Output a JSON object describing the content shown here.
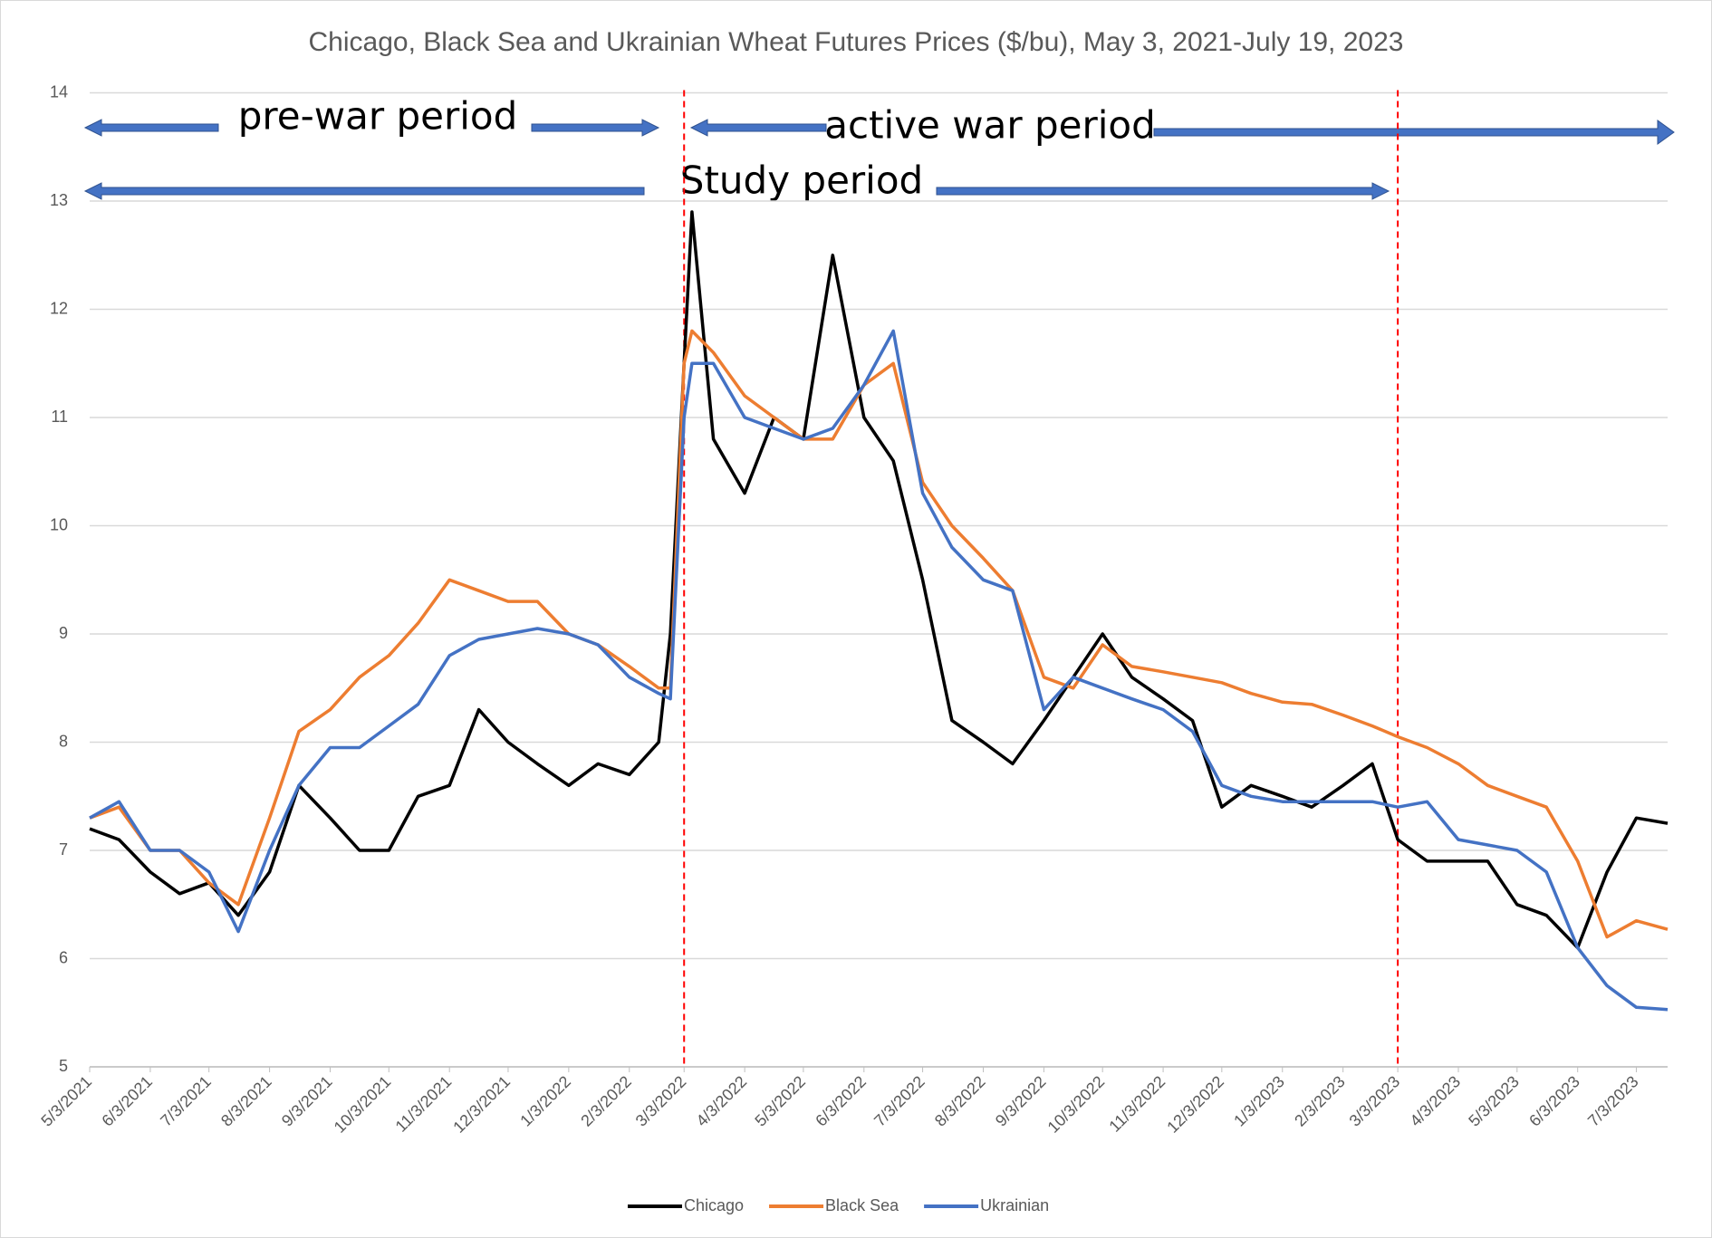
{
  "chart_data": {
    "type": "line",
    "title": "Chicago, Black Sea and Ukrainian Wheat Futures Prices ($/bu), May 3, 2021-July 19, 2023",
    "x": [
      "5/3/2021",
      "5/18/2021",
      "6/3/2021",
      "6/18/2021",
      "7/3/2021",
      "7/18/2021",
      "8/3/2021",
      "8/18/2021",
      "9/3/2021",
      "9/18/2021",
      "10/3/2021",
      "10/18/2021",
      "11/3/2021",
      "11/18/2021",
      "12/3/2021",
      "12/18/2021",
      "1/3/2022",
      "1/18/2022",
      "2/3/2022",
      "2/18/2022",
      "2/24/2022",
      "3/3/2022",
      "3/7/2022",
      "3/18/2022",
      "4/3/2022",
      "4/18/2022",
      "5/3/2022",
      "5/18/2022",
      "6/3/2022",
      "6/18/2022",
      "7/3/2022",
      "7/18/2022",
      "8/3/2022",
      "8/18/2022",
      "9/3/2022",
      "9/18/2022",
      "10/3/2022",
      "10/18/2022",
      "11/3/2022",
      "11/18/2022",
      "12/3/2022",
      "12/18/2022",
      "1/3/2023",
      "1/18/2023",
      "2/3/2023",
      "2/18/2023",
      "3/3/2023",
      "3/18/2023",
      "4/3/2023",
      "4/18/2023",
      "5/3/2023",
      "5/18/2023",
      "6/3/2023",
      "6/18/2023",
      "7/3/2023",
      "7/19/2023"
    ],
    "series": [
      {
        "name": "Chicago",
        "color": "#000000",
        "values": [
          7.2,
          7.1,
          6.8,
          6.6,
          6.7,
          6.4,
          6.8,
          7.6,
          7.3,
          7.0,
          7.0,
          7.5,
          7.6,
          8.3,
          8.0,
          7.8,
          7.6,
          7.8,
          7.7,
          8.0,
          9.0,
          11.5,
          12.9,
          10.8,
          10.3,
          11.0,
          10.8,
          12.5,
          11.0,
          10.6,
          9.5,
          8.2,
          8.0,
          7.8,
          8.2,
          8.6,
          9.0,
          8.6,
          8.4,
          8.2,
          7.4,
          7.6,
          7.5,
          7.4,
          7.6,
          7.8,
          7.1,
          6.9,
          6.9,
          6.9,
          6.5,
          6.4,
          6.1,
          6.8,
          7.3,
          7.25
        ]
      },
      {
        "name": "Black Sea",
        "color": "#ed7d31",
        "values": [
          7.3,
          7.4,
          7.0,
          7.0,
          6.7,
          6.5,
          7.3,
          8.1,
          8.3,
          8.6,
          8.8,
          9.1,
          9.5,
          9.4,
          9.3,
          9.3,
          9.0,
          8.9,
          8.7,
          8.5,
          8.5,
          11.5,
          11.8,
          11.6,
          11.2,
          11.0,
          10.8,
          10.8,
          11.3,
          11.5,
          10.4,
          10.0,
          9.7,
          9.4,
          8.6,
          8.5,
          8.9,
          8.7,
          8.65,
          8.6,
          8.55,
          8.45,
          8.37,
          8.35,
          8.25,
          8.15,
          8.05,
          7.95,
          7.8,
          7.6,
          7.5,
          7.4,
          6.9,
          6.2,
          6.35,
          6.27
        ]
      },
      {
        "name": "Ukrainian",
        "color": "#4472c4",
        "values": [
          7.3,
          7.45,
          7.0,
          7.0,
          6.8,
          6.25,
          7.0,
          7.6,
          7.95,
          7.95,
          8.15,
          8.35,
          8.8,
          8.95,
          9.0,
          9.05,
          9.0,
          8.9,
          8.6,
          8.45,
          8.4,
          11.0,
          11.5,
          11.5,
          11.0,
          10.9,
          10.8,
          10.9,
          11.3,
          11.8,
          10.3,
          9.8,
          9.5,
          9.4,
          8.3,
          8.6,
          8.5,
          8.4,
          8.3,
          8.1,
          7.6,
          7.5,
          7.45,
          7.45,
          7.45,
          7.45,
          7.4,
          7.45,
          7.1,
          7.05,
          7.0,
          6.8,
          6.1,
          5.75,
          5.55,
          5.53
        ]
      }
    ],
    "xlim": [
      "5/3/2021",
      "7/19/2023"
    ],
    "xticks": [
      "5/3/2021",
      "6/3/2021",
      "7/3/2021",
      "8/3/2021",
      "9/3/2021",
      "10/3/2021",
      "11/3/2021",
      "12/3/2021",
      "1/3/2022",
      "2/3/2022",
      "3/3/2022",
      "4/3/2022",
      "5/3/2022",
      "6/3/2022",
      "7/3/2022",
      "8/3/2022",
      "9/3/2022",
      "10/3/2022",
      "11/3/2022",
      "12/3/2022",
      "1/3/2023",
      "2/3/2023",
      "3/3/2023",
      "4/3/2023",
      "5/3/2023",
      "6/3/2023",
      "7/3/2023"
    ],
    "ylim": [
      5,
      14
    ],
    "yticks": [
      5,
      6,
      7,
      8,
      9,
      10,
      11,
      12,
      13,
      14
    ],
    "grid": true,
    "vlines": [
      "3/3/2022",
      "3/3/2023"
    ],
    "vline_color": "#ff0000",
    "annotations": [
      "pre-war period",
      "active war period",
      "Study period"
    ],
    "legend": "bottom"
  }
}
